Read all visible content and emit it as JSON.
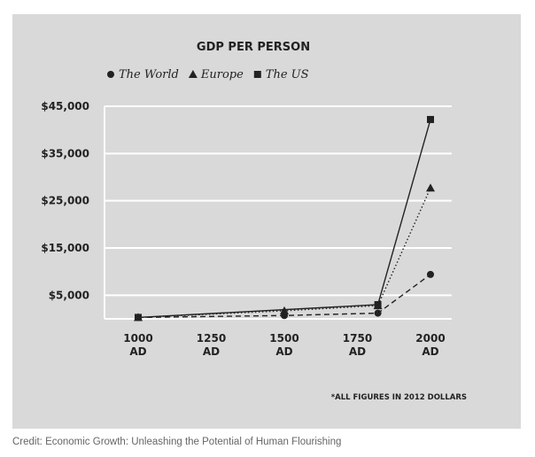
{
  "chart_data": {
    "type": "line",
    "title": "GDP PER PERSON",
    "note": "*ALL FIGURES IN 2012 DOLLARS",
    "x": [
      1000,
      1500,
      1820,
      2000
    ],
    "xlim": [
      1000,
      2000
    ],
    "xtick_values": [
      1000,
      1250,
      1500,
      1750,
      2000
    ],
    "xtick_line1": [
      "1000",
      "1250",
      "1500",
      "1750",
      "2000"
    ],
    "xtick_line2": [
      "AD",
      "AD",
      "AD",
      "AD",
      "AD"
    ],
    "ylim": [
      0,
      45000
    ],
    "ytick_values": [
      5000,
      15000,
      25000,
      35000,
      45000
    ],
    "ytick_labels": [
      "$5,000",
      "$15,000",
      "$25,000",
      "$35,000",
      "$45,000"
    ],
    "grid": true,
    "legend": "top-left",
    "series": [
      {
        "name": "The World",
        "marker": "circle",
        "dash": "dashed",
        "color": "#222222",
        "points": [
          [
            1000,
            300
          ],
          [
            1500,
            700
          ],
          [
            1820,
            1200
          ],
          [
            2000,
            9400
          ]
        ]
      },
      {
        "name": "Europe",
        "marker": "triangle",
        "dash": "dotted",
        "color": "#222222",
        "points": [
          [
            1000,
            300
          ],
          [
            1500,
            1700
          ],
          [
            1820,
            2800
          ],
          [
            2000,
            27700
          ]
        ]
      },
      {
        "name": "The US",
        "marker": "square",
        "dash": "solid",
        "color": "#222222",
        "points": [
          [
            1000,
            300
          ],
          [
            1820,
            3000
          ],
          [
            2000,
            42200
          ]
        ]
      }
    ]
  },
  "caption": {
    "credit": "Credit: Economic Growth: Unleashing the Potential of Human Flourishing"
  }
}
